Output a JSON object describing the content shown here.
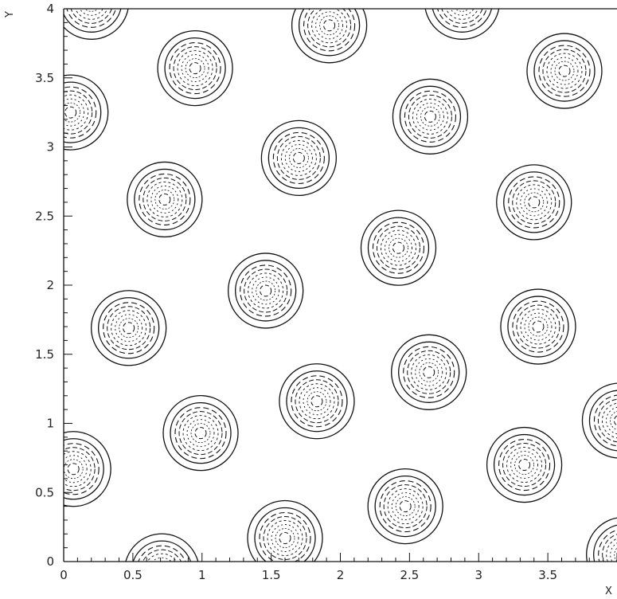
{
  "chart_data": {
    "type": "contour",
    "xlabel": "X",
    "ylabel": "Y",
    "xlim": [
      0,
      4
    ],
    "ylim": [
      0,
      4
    ],
    "x_ticks": [
      0,
      0.5,
      1,
      1.5,
      2,
      2.5,
      3,
      3.5
    ],
    "x_tick_labels": [
      "0",
      "0.5",
      "1",
      "1.5",
      "2",
      "2.5",
      "3",
      "3.5"
    ],
    "y_ticks": [
      0,
      0.5,
      1,
      1.5,
      2,
      2.5,
      3,
      3.5,
      4
    ],
    "y_tick_labels": [
      "0",
      "0.5",
      "1",
      "1.5",
      "2",
      "2.5",
      "3",
      "3.5",
      "4"
    ],
    "grid": false,
    "line_color": "#111111",
    "peaks": [
      {
        "x": 0.2,
        "y": 4.05
      },
      {
        "x": 1.92,
        "y": 3.88
      },
      {
        "x": 2.88,
        "y": 4.05
      },
      {
        "x": 0.95,
        "y": 3.57
      },
      {
        "x": 3.62,
        "y": 3.55
      },
      {
        "x": 0.05,
        "y": 3.25
      },
      {
        "x": 2.65,
        "y": 3.22
      },
      {
        "x": 1.7,
        "y": 2.92
      },
      {
        "x": 0.73,
        "y": 2.62
      },
      {
        "x": 3.4,
        "y": 2.6
      },
      {
        "x": 2.42,
        "y": 2.27
      },
      {
        "x": 1.46,
        "y": 1.96
      },
      {
        "x": 0.47,
        "y": 1.69
      },
      {
        "x": 3.43,
        "y": 1.7
      },
      {
        "x": 2.64,
        "y": 1.37
      },
      {
        "x": 1.83,
        "y": 1.16
      },
      {
        "x": 0.99,
        "y": 0.93
      },
      {
        "x": 4.02,
        "y": 1.02
      },
      {
        "x": 0.07,
        "y": 0.67
      },
      {
        "x": 3.33,
        "y": 0.7
      },
      {
        "x": 2.47,
        "y": 0.4
      },
      {
        "x": 1.6,
        "y": 0.17
      },
      {
        "x": 0.71,
        "y": -0.07
      },
      {
        "x": 4.05,
        "y": 0.05
      }
    ]
  }
}
